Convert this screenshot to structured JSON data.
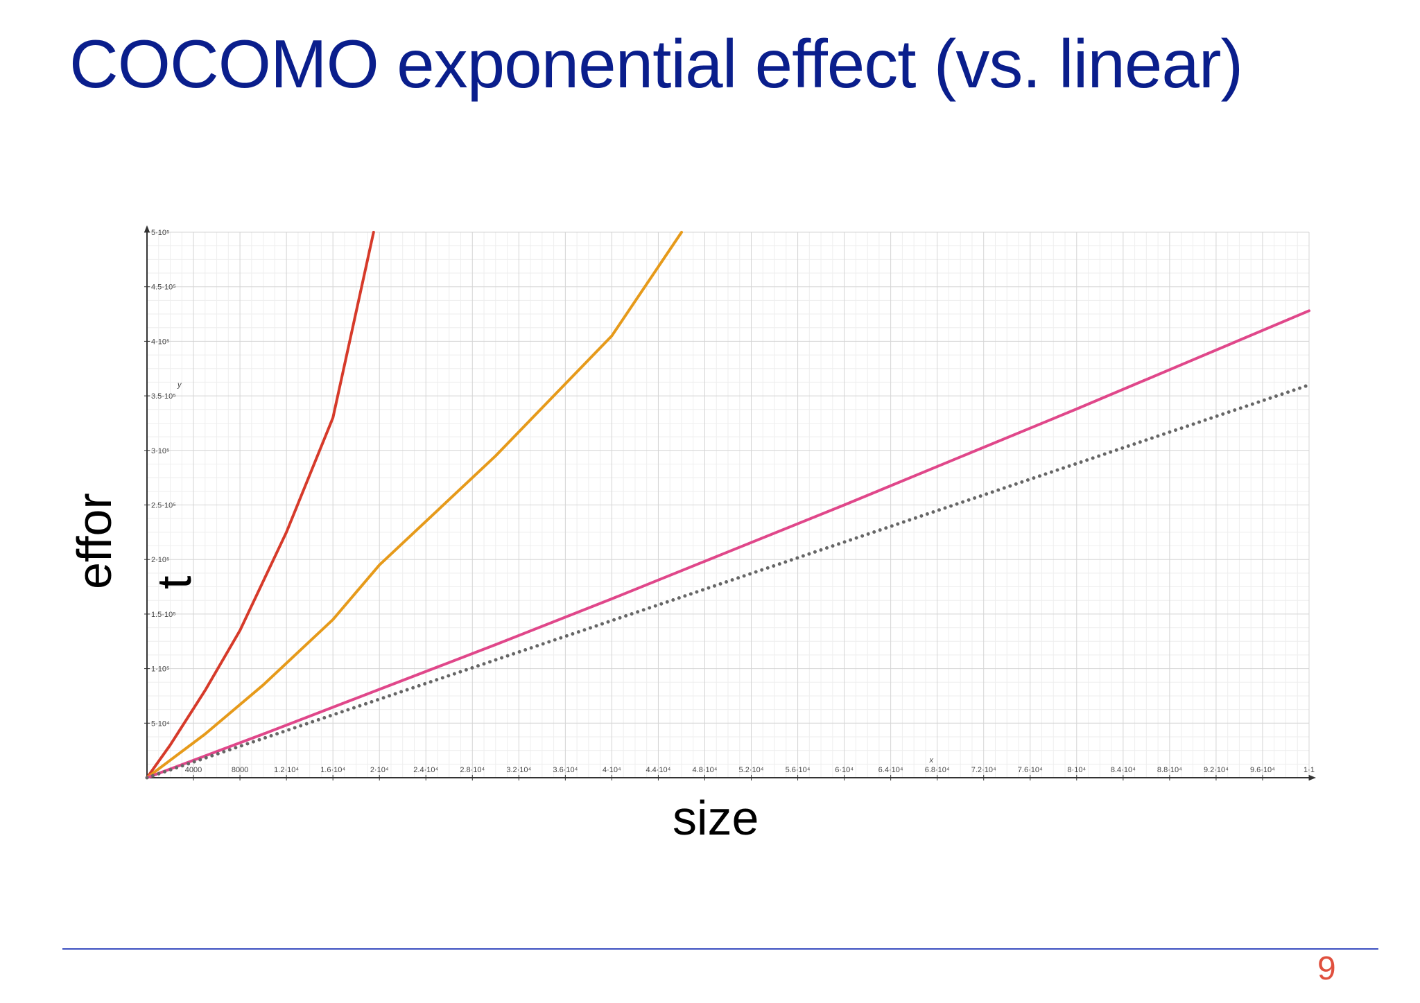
{
  "slide": {
    "title": "COCOMO exponential effect (vs. linear)",
    "page_number": "9"
  },
  "chart_data": {
    "type": "line",
    "xlabel": "size",
    "ylabel_line1": "effor",
    "ylabel_line2": "t",
    "axis_var_x": "x",
    "axis_var_y": "y",
    "xlim": [
      0,
      100000
    ],
    "ylim": [
      0,
      500000
    ],
    "x_ticks": [
      {
        "v": 4000,
        "label": "4000"
      },
      {
        "v": 8000,
        "label": "8000"
      },
      {
        "v": 12000,
        "label": "1.2·10⁴"
      },
      {
        "v": 16000,
        "label": "1.6·10⁴"
      },
      {
        "v": 20000,
        "label": "2·10⁴"
      },
      {
        "v": 24000,
        "label": "2.4·10⁴"
      },
      {
        "v": 28000,
        "label": "2.8·10⁴"
      },
      {
        "v": 32000,
        "label": "3.2·10⁴"
      },
      {
        "v": 36000,
        "label": "3.6·10⁴"
      },
      {
        "v": 40000,
        "label": "4·10⁴"
      },
      {
        "v": 44000,
        "label": "4.4·10⁴"
      },
      {
        "v": 48000,
        "label": "4.8·10⁴"
      },
      {
        "v": 52000,
        "label": "5.2·10⁴"
      },
      {
        "v": 56000,
        "label": "5.6·10⁴"
      },
      {
        "v": 60000,
        "label": "6·10⁴"
      },
      {
        "v": 64000,
        "label": "6.4·10⁴"
      },
      {
        "v": 68000,
        "label": "6.8·10⁴"
      },
      {
        "v": 72000,
        "label": "7.2·10⁴"
      },
      {
        "v": 76000,
        "label": "7.6·10⁴"
      },
      {
        "v": 80000,
        "label": "8·10⁴"
      },
      {
        "v": 84000,
        "label": "8.4·10⁴"
      },
      {
        "v": 88000,
        "label": "8.8·10⁴"
      },
      {
        "v": 92000,
        "label": "9.2·10⁴"
      },
      {
        "v": 96000,
        "label": "9.6·10⁴"
      },
      {
        "v": 100000,
        "label": "1·1"
      }
    ],
    "y_ticks": [
      {
        "v": 50000,
        "label": "5·10⁴"
      },
      {
        "v": 100000,
        "label": "1·10⁵"
      },
      {
        "v": 150000,
        "label": "1.5·10⁵"
      },
      {
        "v": 200000,
        "label": "2·10⁵"
      },
      {
        "v": 250000,
        "label": "2.5·10⁵"
      },
      {
        "v": 300000,
        "label": "3·10⁵"
      },
      {
        "v": 350000,
        "label": "3.5·10⁵"
      },
      {
        "v": 400000,
        "label": "4·10⁵"
      },
      {
        "v": 450000,
        "label": "4.5·10⁵"
      },
      {
        "v": 500000,
        "label": "5·10⁵"
      }
    ],
    "series": [
      {
        "color": "#d63a2a",
        "style": "solid",
        "x": [
          0,
          2000,
          5000,
          8000,
          12000,
          16000,
          19500
        ],
        "y": [
          0,
          30000,
          80000,
          135000,
          225000,
          330000,
          500000
        ]
      },
      {
        "color": "#e69a1a",
        "style": "solid",
        "x": [
          0,
          5000,
          10000,
          16000,
          20000,
          30000,
          40000,
          46000
        ],
        "y": [
          0,
          40000,
          85000,
          145000,
          195000,
          295000,
          405000,
          500000
        ]
      },
      {
        "color": "#e0478a",
        "style": "solid",
        "x": [
          0,
          10000,
          20000,
          30000,
          40000,
          50000,
          60000,
          70000,
          80000,
          90000,
          100000
        ],
        "y": [
          0,
          40000,
          81000,
          122000,
          164000,
          207000,
          250000,
          294000,
          338000,
          383000,
          428000
        ]
      },
      {
        "color": "#666666",
        "style": "dotted",
        "x": [
          0,
          100000
        ],
        "y": [
          0,
          360000
        ]
      }
    ]
  }
}
